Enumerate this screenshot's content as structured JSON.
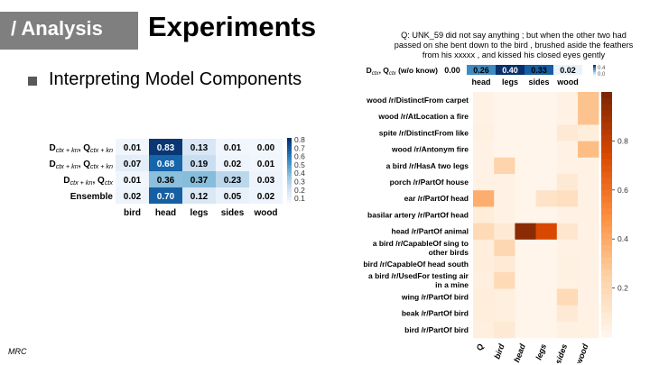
{
  "header": {
    "section_tag": "/ Analysis",
    "title": "Experiments"
  },
  "bullet": {
    "text": "Interpreting Model Components"
  },
  "footer": {
    "text": "MRC"
  },
  "question": {
    "text": "Q: UNK_59 did not say anything ; but when the other two had passed on she bent down to the bird , brushed aside the feathers from his xxxxx , and kissed his closed eyes gently"
  },
  "colors": {
    "blue_scale": [
      "#f2f7fd",
      "#d0e1f2",
      "#94c4df",
      "#4a98c9",
      "#1765ab",
      "#08306b"
    ],
    "orange_scale": [
      "#fff5eb",
      "#fdd0a2",
      "#fd8d3c",
      "#d94801",
      "#7f2704"
    ]
  },
  "chart_data": [
    {
      "type": "heatmap",
      "rows": [
        "Dctx+kn, Qctx+kn",
        "Dctx+kn, Qctx+kn",
        "Dctx+kn, Qctx",
        "Ensemble"
      ],
      "row_labels": [
        {
          "main": "D",
          "sub1": "ctx + kn",
          "mid": ", Q",
          "sub2": "ctx + kn"
        },
        {
          "main": "D",
          "sub1": "ctx + kn",
          "mid": ", Q",
          "sub2": "ctx + kn"
        },
        {
          "main": "D",
          "sub1": "ctx + kn",
          "mid": ", Q",
          "sub2": "ctx"
        },
        {
          "main": "Ensemble",
          "sub1": "",
          "mid": "",
          "sub2": ""
        }
      ],
      "columns": [
        "bird",
        "head",
        "legs",
        "sides",
        "wood"
      ],
      "values": [
        [
          0.01,
          0.83,
          0.13,
          0.01,
          0.0
        ],
        [
          0.07,
          0.68,
          0.19,
          0.02,
          0.01
        ],
        [
          0.01,
          0.36,
          0.37,
          0.23,
          0.03
        ],
        [
          0.02,
          0.7,
          0.12,
          0.05,
          0.02
        ]
      ],
      "value_labels": [
        [
          "0.01",
          "0.83",
          "0.13",
          "0.01",
          "0.00"
        ],
        [
          "0.07",
          "0.68",
          "0.19",
          "0.02",
          "0.01"
        ],
        [
          "0.01",
          "0.36",
          "0.37",
          "0.23",
          "0.03"
        ],
        [
          "0.02",
          "0.70",
          "0.12",
          "0.05",
          "0.02"
        ]
      ],
      "colorbar_ticks": [
        "0.8",
        "0.7",
        "0.6",
        "0.5",
        "0.4",
        "0.3",
        "0.2",
        "0.1"
      ],
      "vmin": 0.0,
      "vmax": 0.85
    },
    {
      "type": "heatmap",
      "rows": [
        "Dctx, Qctx (w/o know)"
      ],
      "row_label": {
        "main": "D",
        "sub1": "ctx",
        "mid": ", Q",
        "sub2": "ctx",
        "tail": " (w/o know)"
      },
      "columns": [
        "bird",
        "head",
        "legs",
        "sides",
        "wood"
      ],
      "values": [
        [
          0.0,
          0.26,
          0.4,
          0.33,
          0.02
        ]
      ],
      "value_labels": [
        [
          "0.00",
          "0.26",
          "0.40",
          "0.33",
          "0.02"
        ]
      ],
      "colorbar_ticks": [
        "0.4",
        "0.0"
      ],
      "vmin": 0.0,
      "vmax": 0.4
    },
    {
      "type": "heatmap",
      "rows": [
        [
          "wood /r/DistinctFrom carpet"
        ],
        [
          "wood /r/AtLocation a fire"
        ],
        [
          "spite /r/DistinctFrom like"
        ],
        [
          "wood /r/Antonym fire"
        ],
        [
          "a bird /r/HasA two legs"
        ],
        [
          "porch /r/PartOf house"
        ],
        [
          "ear /r/PartOf head"
        ],
        [
          "basilar artery /r/PartOf head"
        ],
        [
          "head /r/PartOf animal"
        ],
        [
          "a bird /r/CapableOf sing to",
          "other birds"
        ],
        [
          "bird /r/CapableOf head south"
        ],
        [
          "a bird /r/UsedFor testing air",
          "in a mine"
        ],
        [
          "wing /r/PartOf bird"
        ],
        [
          "beak /r/PartOf bird"
        ],
        [
          "bird /r/PartOf bird"
        ]
      ],
      "columns": [
        "Q",
        "bird",
        "head",
        "legs",
        "sides",
        "wood"
      ],
      "values": [
        [
          0.02,
          0.0,
          0.0,
          0.0,
          0.02,
          0.3
        ],
        [
          0.02,
          0.0,
          0.0,
          0.0,
          0.02,
          0.3
        ],
        [
          0.03,
          0.0,
          0.0,
          0.0,
          0.08,
          0.05
        ],
        [
          0.02,
          0.0,
          0.0,
          0.0,
          0.02,
          0.32
        ],
        [
          0.02,
          0.22,
          0.0,
          0.0,
          0.02,
          0.02
        ],
        [
          0.02,
          0.02,
          0.0,
          0.0,
          0.08,
          0.02
        ],
        [
          0.38,
          0.02,
          0.0,
          0.12,
          0.15,
          0.02
        ],
        [
          0.06,
          0.02,
          0.0,
          0.0,
          0.02,
          0.02
        ],
        [
          0.18,
          0.08,
          0.97,
          0.75,
          0.1,
          0.02
        ],
        [
          0.05,
          0.2,
          0.0,
          0.0,
          0.02,
          0.02
        ],
        [
          0.05,
          0.08,
          0.0,
          0.0,
          0.03,
          0.02
        ],
        [
          0.04,
          0.18,
          0.0,
          0.0,
          0.03,
          0.02
        ],
        [
          0.05,
          0.04,
          0.0,
          0.0,
          0.18,
          0.02
        ],
        [
          0.05,
          0.04,
          0.0,
          0.0,
          0.08,
          0.02
        ],
        [
          0.04,
          0.08,
          0.0,
          0.0,
          0.03,
          0.02
        ]
      ],
      "colorbar_ticks": [
        "0.8",
        "0.6",
        "0.4",
        "0.2"
      ],
      "vmin": 0.0,
      "vmax": 1.0
    }
  ]
}
